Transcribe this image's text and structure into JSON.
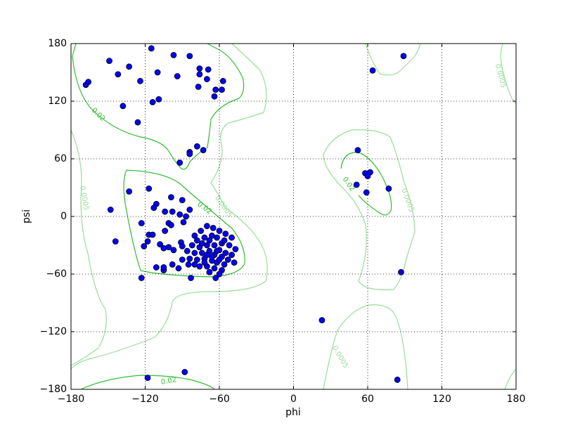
{
  "chart_data": {
    "type": "scatter",
    "xlabel": "phi",
    "ylabel": "psi",
    "color": "#0000ff",
    "xlim": [
      -180,
      180
    ],
    "ylim": [
      -180,
      180
    ],
    "xticks": [
      {
        "value": -180,
        "label": "−180"
      },
      {
        "value": -120,
        "label": "−120"
      },
      {
        "value": -60,
        "label": "−60"
      },
      0,
      60,
      120,
      180
    ],
    "yticks": [
      {
        "value": -180,
        "label": "−180"
      },
      {
        "value": -120,
        "label": "−120"
      },
      {
        "value": -60,
        "label": "−60"
      },
      0,
      60,
      120,
      180
    ],
    "grid": true,
    "contours": [
      {
        "level": 0.02,
        "color": "#33bb33"
      },
      {
        "level": 0.0005,
        "color": "#99dd99"
      }
    ],
    "x": [
      -168,
      -166,
      -149,
      -133,
      -142,
      -115,
      -97,
      -84,
      -124,
      -110,
      -94,
      -76,
      -69,
      -76,
      -70,
      -57,
      -77,
      -63,
      -58,
      -64,
      -138,
      -109,
      -114,
      -126,
      -78,
      -73,
      -84,
      -84,
      -92,
      89,
      64,
      52,
      58,
      62,
      60,
      51,
      77,
      59,
      87,
      23,
      84,
      -118,
      -88,
      -148,
      -133,
      -117,
      -144,
      -99,
      -111,
      -113,
      -104,
      -98,
      -90,
      -84,
      -92,
      -87,
      -89,
      -123,
      -101,
      -99,
      -117,
      -114,
      -104,
      -118,
      -108,
      -121,
      -105,
      -101,
      -97,
      -91,
      -90,
      -90,
      -105,
      -98,
      -93,
      -85,
      -111,
      -105,
      -123,
      -83,
      -63,
      -80,
      -75,
      -70,
      -65,
      -60,
      -55,
      -50,
      -78,
      -72,
      -68,
      -62,
      -58,
      -52,
      -47,
      -82,
      -76,
      -70,
      -64,
      -60,
      -55,
      -50,
      -80,
      -74,
      -68,
      -64,
      -58,
      -53,
      -48,
      -84,
      -78,
      -72,
      -66,
      -62,
      -56,
      -76,
      -70,
      -64,
      -58,
      -68,
      -72,
      -66,
      -62,
      -70,
      -60,
      -74,
      -66,
      -56,
      -86,
      -60,
      -80
    ],
    "y": [
      137,
      140,
      162,
      156,
      148,
      175,
      168,
      167,
      141,
      150,
      146,
      154,
      153,
      148,
      143,
      141,
      135,
      132,
      132,
      125,
      115,
      122,
      119,
      98,
      73,
      69,
      67,
      65,
      56,
      167,
      152,
      69,
      45,
      46,
      42,
      33,
      29,
      25,
      -58,
      -108,
      -170,
      -168,
      -162,
      7,
      26,
      29,
      -26,
      20,
      13,
      9,
      5,
      5,
      17,
      7,
      2,
      0,
      -6,
      -7,
      -7,
      -9,
      -19,
      -19,
      -15,
      -26,
      -29,
      -31,
      -33,
      -32,
      -35,
      -27,
      -31,
      -45,
      -56,
      -50,
      -54,
      -50,
      -53,
      -53,
      -64,
      -64,
      -64,
      -20,
      -15,
      -10,
      -12,
      -15,
      -18,
      -22,
      -25,
      -22,
      -25,
      -22,
      -28,
      -30,
      -34,
      -30,
      -32,
      -30,
      -30,
      -35,
      -38,
      -40,
      -38,
      -38,
      -36,
      -40,
      -42,
      -45,
      -48,
      -44,
      -45,
      -44,
      -46,
      -48,
      -50,
      -52,
      -52,
      -54,
      -56,
      -58,
      -48,
      -42,
      -36,
      -40,
      -45,
      -28,
      -20,
      -25,
      -36,
      -60,
      -50
    ]
  }
}
